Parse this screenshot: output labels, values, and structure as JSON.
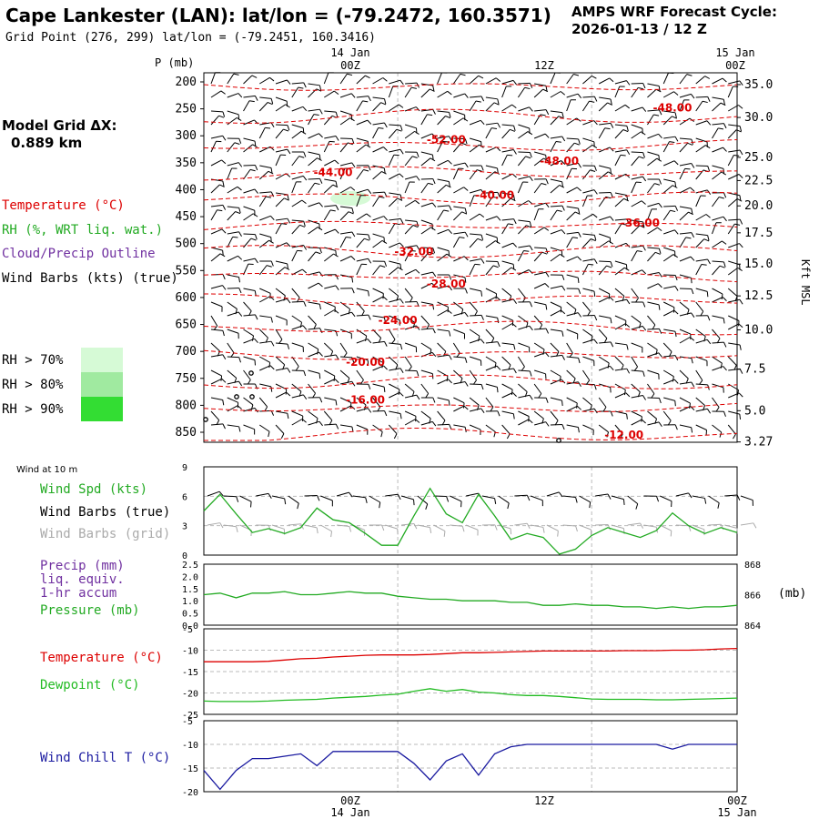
{
  "header": {
    "title": "Cape Lankester (LAN):  lat/lon = (-79.2472, 160.3571)",
    "grid_point": "Grid Point (276, 299) lat/lon = (-79.2451, 160.3416)",
    "cycle_line1": "AMPS WRF Forecast Cycle:",
    "cycle_line2": "2026-01-13 / 12  Z"
  },
  "sidebar": {
    "model_grid_line1": "Model Grid ΔX:",
    "model_grid_line2": "0.889 km",
    "legend_temperature": "Temperature (°C)",
    "legend_rh": "RH (%, WRT liq. wat.)",
    "legend_cloud": "Cloud/Precip Outline",
    "legend_wind": "Wind Barbs (kts) (true)",
    "rh_70": "RH > 70%",
    "rh_80": "RH > 80%",
    "rh_90": "RH > 90%"
  },
  "colors": {
    "temperature": "#dd0000",
    "rh": "#22aa22",
    "cloud": "#7030a0",
    "wind": "#000000",
    "wind_grid": "#aaaaaa",
    "dewpoint": "#22bb22",
    "windchill": "#1a1aa0",
    "rh70": "#d6fad6",
    "rh80": "#a0eaa0",
    "rh90": "#33dd33"
  },
  "time_axis": {
    "top_labels": [
      {
        "line1": "14 Jan",
        "line2": "00Z"
      },
      {
        "line1": "",
        "line2": "12Z"
      },
      {
        "line1": "15 Jan",
        "line2": "00Z"
      }
    ],
    "bottom_labels": [
      {
        "line1": "00Z",
        "line2": "14 Jan"
      },
      {
        "line1": "12Z",
        "line2": ""
      },
      {
        "line1": "00Z",
        "line2": "15 Jan"
      }
    ]
  },
  "chart_data": [
    {
      "type": "line",
      "panel": "time-height cross section",
      "ylabel": "P (mb)",
      "right_label": "Kft MSL",
      "y_ticks": [
        200,
        250,
        300,
        350,
        400,
        450,
        500,
        550,
        600,
        650,
        700,
        750,
        800,
        850
      ],
      "height_ticks_kft": [
        {
          "label": "35.0",
          "p": 205
        },
        {
          "label": "30.0",
          "p": 266
        },
        {
          "label": "25.0",
          "p": 340
        },
        {
          "label": "22.5",
          "p": 383
        },
        {
          "label": "20.0",
          "p": 430
        },
        {
          "label": "17.5",
          "p": 480
        },
        {
          "label": "15.0",
          "p": 538
        },
        {
          "label": "12.5",
          "p": 597
        },
        {
          "label": "10.0",
          "p": 660
        },
        {
          "label": "7.5",
          "p": 733
        },
        {
          "label": "5.0",
          "p": 810
        },
        {
          "label": "3.27",
          "p": 868
        }
      ],
      "isotherm_labels": [
        {
          "text": "-48.00",
          "hour": 29,
          "p": 248
        },
        {
          "text": "-52.00",
          "hour": 15,
          "p": 307
        },
        {
          "text": "-48.00",
          "hour": 22,
          "p": 347
        },
        {
          "text": "-44.00",
          "hour": 8,
          "p": 368
        },
        {
          "text": "-40.00",
          "hour": 18,
          "p": 410
        },
        {
          "text": "-36.00",
          "hour": 27,
          "p": 462
        },
        {
          "text": "-32.00",
          "hour": 13,
          "p": 515
        },
        {
          "text": "-28.00",
          "hour": 15,
          "p": 575
        },
        {
          "text": "-24.00",
          "hour": 12,
          "p": 642
        },
        {
          "text": "-20.00",
          "hour": 10,
          "p": 720
        },
        {
          "text": "-16.00",
          "hour": 10,
          "p": 790
        },
        {
          "text": "-12.00",
          "hour": 26,
          "p": 855
        }
      ]
    },
    {
      "type": "line",
      "panel": "wind at 10 m",
      "title": "Wind at 10 m",
      "legend": [
        "Wind Spd (kts)",
        "Wind Barbs (true)",
        "Wind Barbs (grid)"
      ],
      "ylim": [
        0,
        9
      ],
      "y_ticks": [
        0,
        3,
        6,
        9
      ],
      "x_hours": [
        0,
        1,
        2,
        3,
        4,
        5,
        6,
        7,
        8,
        9,
        10,
        11,
        12,
        13,
        14,
        15,
        16,
        17,
        18,
        19,
        20,
        21,
        22,
        23,
        24,
        25,
        26,
        27,
        28,
        29,
        30,
        31,
        32,
        33
      ],
      "series": [
        {
          "name": "Wind Spd (kts)",
          "values": [
            4.5,
            6.2,
            4.2,
            2.3,
            2.7,
            2.2,
            2.8,
            4.8,
            3.6,
            3.3,
            2.2,
            1.0,
            1.0,
            4.0,
            6.8,
            4.2,
            3.3,
            6.2,
            4.0,
            1.6,
            2.2,
            1.8,
            0.1,
            0.6,
            2.0,
            2.8,
            2.3,
            1.8,
            2.5,
            4.3,
            3.0,
            2.2,
            2.8,
            2.3
          ]
        }
      ]
    },
    {
      "type": "line",
      "panel": "precip and pressure",
      "legend": [
        "Precip (mm)",
        "liq. equiv.",
        "1-hr accum",
        "Pressure (mb)"
      ],
      "ylim": [
        0,
        2.5
      ],
      "y_ticks": [
        0.0,
        0.5,
        1.0,
        1.5,
        2.0,
        2.5
      ],
      "y2_ticks": [
        864,
        866,
        868
      ],
      "y2_label": "(mb)",
      "series": [
        {
          "name": "Pressure (mb)",
          "values": [
            866.0,
            866.1,
            865.8,
            866.1,
            866.1,
            866.2,
            866.0,
            866.0,
            866.1,
            866.2,
            866.1,
            866.1,
            865.9,
            865.8,
            865.7,
            865.7,
            865.6,
            865.6,
            865.6,
            865.5,
            865.5,
            865.3,
            865.3,
            865.4,
            865.3,
            865.3,
            865.2,
            865.2,
            865.1,
            865.2,
            865.1,
            865.2,
            865.2,
            865.3
          ]
        }
      ]
    },
    {
      "type": "line",
      "panel": "temperature and dewpoint",
      "ylim": [
        -25,
        -5
      ],
      "y_ticks": [
        -5,
        -10,
        -15,
        -20,
        -25
      ],
      "series": [
        {
          "name": "Temperature (°C)",
          "values": [
            -12.7,
            -12.7,
            -12.7,
            -12.7,
            -12.6,
            -12.3,
            -12.0,
            -11.9,
            -11.6,
            -11.4,
            -11.2,
            -11.1,
            -11.1,
            -11.1,
            -11.0,
            -10.8,
            -10.6,
            -10.6,
            -10.5,
            -10.4,
            -10.3,
            -10.2,
            -10.2,
            -10.2,
            -10.2,
            -10.2,
            -10.1,
            -10.1,
            -10.1,
            -10.0,
            -10.0,
            -9.9,
            -9.7,
            -9.6
          ]
        },
        {
          "name": "Dewpoint (°C)",
          "values": [
            -21.9,
            -22.0,
            -22.0,
            -22.0,
            -21.9,
            -21.7,
            -21.6,
            -21.5,
            -21.2,
            -21.0,
            -20.8,
            -20.5,
            -20.3,
            -19.6,
            -19.0,
            -19.6,
            -19.2,
            -19.8,
            -20.0,
            -20.4,
            -20.6,
            -20.6,
            -20.8,
            -21.1,
            -21.4,
            -21.5,
            -21.5,
            -21.5,
            -21.6,
            -21.6,
            -21.5,
            -21.4,
            -21.3,
            -21.2
          ]
        }
      ]
    },
    {
      "type": "line",
      "panel": "wind chill",
      "ylim": [
        -20,
        -5
      ],
      "y_ticks": [
        -5,
        -10,
        -15,
        -20
      ],
      "series": [
        {
          "name": "Wind Chill T (°C)",
          "values": [
            -15.5,
            -19.5,
            -15.5,
            -13.0,
            -13.0,
            -12.5,
            -12.0,
            -14.5,
            -11.5,
            -11.5,
            -11.5,
            -11.5,
            -11.5,
            -14.0,
            -17.5,
            -13.5,
            -12.0,
            -16.5,
            -12.0,
            -10.5,
            -10.0,
            -10.0,
            -10.0,
            -10.0,
            -10.0,
            -10.0,
            -10.0,
            -10.0,
            -10.0,
            -11.0,
            -10.0,
            -10.0,
            -10.0,
            -10.0
          ]
        }
      ]
    }
  ]
}
